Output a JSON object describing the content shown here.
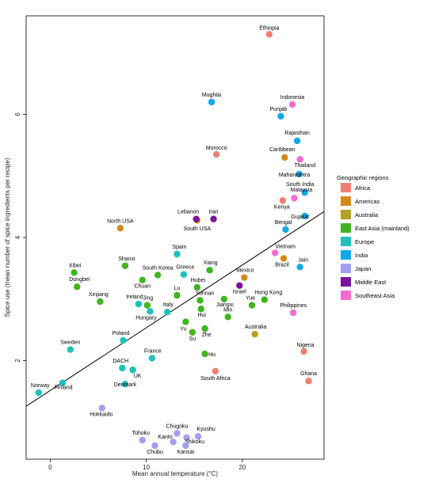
{
  "chart_data": {
    "type": "scatter",
    "xlabel": "Mean annual temperature (°C)",
    "ylabel": "Spice use (mean number of spice ingredients per recipe)",
    "xlim": [
      -2.5,
      28.5
    ],
    "ylim": [
      0.4,
      7.6
    ],
    "xticks": [
      0,
      10,
      20
    ],
    "yticks": [
      2,
      4,
      6
    ],
    "grid": false,
    "legend_position": "right",
    "legend_title": "Geographic regions",
    "trendline": {
      "x1": -2.5,
      "y1": 1.26,
      "x2": 28.5,
      "y2": 4.42
    },
    "groups": [
      {
        "name": "Africa",
        "color": "#f07f72"
      },
      {
        "name": "Americas",
        "color": "#d48a13"
      },
      {
        "name": "Australia",
        "color": "#b2a21c"
      },
      {
        "name": "East Asia (mainland)",
        "color": "#3fb51f"
      },
      {
        "name": "Europe",
        "color": "#1fc1b9"
      },
      {
        "name": "India",
        "color": "#12a9e8"
      },
      {
        "name": "Japan",
        "color": "#a29ef0"
      },
      {
        "name": "Middle East",
        "color": "#7b129b"
      },
      {
        "name": "Southeast Asia",
        "color": "#f66bd1"
      }
    ],
    "points": [
      {
        "label": "Ethiopia",
        "group": "Africa",
        "x": 22.8,
        "y": 7.3,
        "lx": 0,
        "ly": -6
      },
      {
        "label": "Morocco",
        "group": "Africa",
        "x": 17.3,
        "y": 5.35,
        "lx": 0,
        "ly": -6
      },
      {
        "label": "Kenya",
        "group": "Africa",
        "x": 24.2,
        "y": 4.6,
        "lx": -1,
        "ly": 10
      },
      {
        "label": "Nigeria",
        "group": "Africa",
        "x": 26.4,
        "y": 2.15,
        "lx": 2,
        "ly": -6
      },
      {
        "label": "Ghana",
        "group": "Africa",
        "x": 26.9,
        "y": 1.67,
        "lx": 0,
        "ly": -7
      },
      {
        "label": "South Africa",
        "group": "Africa",
        "x": 17.2,
        "y": 1.83,
        "lx": 0,
        "ly": 11
      },
      {
        "label": "North USA",
        "group": "Americas",
        "x": 7.3,
        "y": 4.15,
        "lx": 0,
        "ly": -7
      },
      {
        "label": "South USA",
        "group": "Americas",
        "x": 15.3,
        "y": 4.28,
        "lx": 0,
        "ly": 13
      },
      {
        "label": "Mexico",
        "group": "Americas",
        "x": 20.2,
        "y": 3.35,
        "lx": 1,
        "ly": -7
      },
      {
        "label": "Caribbean",
        "group": "Americas",
        "x": 24.4,
        "y": 5.3,
        "lx": -3,
        "ly": -8
      },
      {
        "label": "Brazil",
        "group": "Americas",
        "x": 24.3,
        "y": 3.66,
        "lx": -2,
        "ly": 10
      },
      {
        "label": "Australia",
        "group": "Australia",
        "x": 21.3,
        "y": 2.43,
        "lx": 1,
        "ly": -7
      },
      {
        "label": "Xibei",
        "group": "East Asia (mainland)",
        "x": 2.5,
        "y": 3.43,
        "lx": 1,
        "ly": -7
      },
      {
        "label": "Dongbei",
        "group": "East Asia (mainland)",
        "x": 2.8,
        "y": 3.2,
        "lx": 3,
        "ly": -7
      },
      {
        "label": "Shanxi",
        "group": "East Asia (mainland)",
        "x": 7.8,
        "y": 3.54,
        "lx": 2,
        "ly": -7
      },
      {
        "label": "Xinjiang",
        "group": "East Asia (mainland)",
        "x": 5.2,
        "y": 2.96,
        "lx": -2,
        "ly": -7
      },
      {
        "label": "South Korea",
        "group": "East Asia (mainland)",
        "x": 11.2,
        "y": 3.39,
        "lx": 0,
        "ly": -7
      },
      {
        "label": "Chuan",
        "group": "East Asia (mainland)",
        "x": 9.6,
        "y": 3.31,
        "lx": 0,
        "ly": 10
      },
      {
        "label": "Lu",
        "group": "East Asia (mainland)",
        "x": 13.2,
        "y": 3.06,
        "lx": 0,
        "ly": -7
      },
      {
        "label": "Jing",
        "group": "East Asia (mainland)",
        "x": 10.1,
        "y": 2.9,
        "lx": 1,
        "ly": -7
      },
      {
        "label": "Xiang",
        "group": "East Asia (mainland)",
        "x": 16.6,
        "y": 3.47,
        "lx": 1,
        "ly": -7
      },
      {
        "label": "Hubei",
        "group": "East Asia (mainland)",
        "x": 15.3,
        "y": 3.19,
        "lx": 1,
        "ly": -7
      },
      {
        "label": "Yunnan",
        "group": "East Asia (mainland)",
        "x": 15.6,
        "y": 2.98,
        "lx": 6,
        "ly": -7
      },
      {
        "label": "Jiangxi",
        "group": "East Asia (mainland)",
        "x": 18.1,
        "y": 3.0,
        "lx": 1,
        "ly": 9
      },
      {
        "label": "Yue",
        "group": "East Asia (mainland)",
        "x": 21.0,
        "y": 2.9,
        "lx": -2,
        "ly": -7
      },
      {
        "label": "Hong Kong",
        "group": "East Asia (mainland)",
        "x": 22.3,
        "y": 2.99,
        "lx": 5,
        "ly": -7
      },
      {
        "label": "Hui",
        "group": "East Asia (mainland)",
        "x": 15.7,
        "y": 2.84,
        "lx": 1,
        "ly": 10
      },
      {
        "label": "Min",
        "group": "East Asia (mainland)",
        "x": 18.5,
        "y": 2.71,
        "lx": 0,
        "ly": -7
      },
      {
        "label": "Yu",
        "group": "East Asia (mainland)",
        "x": 14.1,
        "y": 2.63,
        "lx": -3,
        "ly": 11
      },
      {
        "label": "Zhe",
        "group": "East Asia (mainland)",
        "x": 16.1,
        "y": 2.52,
        "lx": 2,
        "ly": 10
      },
      {
        "label": "Su",
        "group": "East Asia (mainland)",
        "x": 14.8,
        "y": 2.46,
        "lx": 0,
        "ly": 10
      },
      {
        "label": "Hu",
        "group": "East Asia (mainland)",
        "x": 16.1,
        "y": 2.11,
        "lx": 9,
        "ly": 3
      },
      {
        "label": "Spain",
        "group": "Europe",
        "x": 13.2,
        "y": 3.73,
        "lx": 3,
        "ly": -7
      },
      {
        "label": "Greece",
        "group": "Europe",
        "x": 13.9,
        "y": 3.4,
        "lx": 2,
        "ly": -7
      },
      {
        "label": "Ireland",
        "group": "Europe",
        "x": 9.2,
        "y": 2.92,
        "lx": -5,
        "ly": -7
      },
      {
        "label": "Hungary",
        "group": "Europe",
        "x": 10.4,
        "y": 2.8,
        "lx": -5,
        "ly": 10
      },
      {
        "label": "Italy",
        "group": "Europe",
        "x": 12.2,
        "y": 2.79,
        "lx": 1,
        "ly": -7
      },
      {
        "label": "Poland",
        "group": "Europe",
        "x": 7.6,
        "y": 2.33,
        "lx": -3,
        "ly": -7
      },
      {
        "label": "France",
        "group": "Europe",
        "x": 10.6,
        "y": 2.04,
        "lx": 1,
        "ly": -7
      },
      {
        "label": "Sweden",
        "group": "Europe",
        "x": 2.1,
        "y": 2.18,
        "lx": 0,
        "ly": -7
      },
      {
        "label": "DACH",
        "group": "Europe",
        "x": 7.5,
        "y": 1.88,
        "lx": -2,
        "ly": -7
      },
      {
        "label": "UK",
        "group": "Europe",
        "x": 8.6,
        "y": 1.85,
        "lx": 6,
        "ly": 10
      },
      {
        "label": "Denmark",
        "group": "Europe",
        "x": 7.8,
        "y": 1.62,
        "lx": 0,
        "ly": 3
      },
      {
        "label": "Finland",
        "group": "Europe",
        "x": 1.3,
        "y": 1.64,
        "lx": 1,
        "ly": 8
      },
      {
        "label": "Norway",
        "group": "Europe",
        "x": -1.2,
        "y": 1.48,
        "lx": 2,
        "ly": -7
      },
      {
        "label": "Mughlai",
        "group": "India",
        "x": 16.8,
        "y": 6.2,
        "lx": 0,
        "ly": -7
      },
      {
        "label": "Punjab",
        "group": "India",
        "x": 24.0,
        "y": 5.97,
        "lx": -3,
        "ly": -7
      },
      {
        "label": "Rajasthan",
        "group": "India",
        "x": 25.7,
        "y": 5.57,
        "lx": 0,
        "ly": -8
      },
      {
        "label": "Maharashtra",
        "group": "India",
        "x": 25.9,
        "y": 5.03,
        "lx": -6,
        "ly": 3
      },
      {
        "label": "South India",
        "group": "India",
        "x": 26.5,
        "y": 4.73,
        "lx": -6,
        "ly": -8
      },
      {
        "label": "Gujarat",
        "group": "India",
        "x": 26.5,
        "y": 4.35,
        "lx": -6,
        "ly": 3
      },
      {
        "label": "Bengal",
        "group": "India",
        "x": 24.5,
        "y": 4.13,
        "lx": -3,
        "ly": -7
      },
      {
        "label": "Jain",
        "group": "India",
        "x": 26.0,
        "y": 3.52,
        "lx": 4,
        "ly": -7
      },
      {
        "label": "Hokkaido",
        "group": "Japan",
        "x": 5.4,
        "y": 1.23,
        "lx": -1,
        "ly": 10
      },
      {
        "label": "Chugoku",
        "group": "Japan",
        "x": 13.2,
        "y": 0.82,
        "lx": 0,
        "ly": -7
      },
      {
        "label": "Kyushu",
        "group": "Japan",
        "x": 15.4,
        "y": 0.77,
        "lx": 10,
        "ly": -7
      },
      {
        "label": "Tohoku",
        "group": "Japan",
        "x": 9.6,
        "y": 0.71,
        "lx": -2,
        "ly": -7
      },
      {
        "label": "Kanto",
        "group": "Japan",
        "x": 12.8,
        "y": 0.68,
        "lx": -10,
        "ly": -4
      },
      {
        "label": "Shikoku",
        "group": "Japan",
        "x": 14.2,
        "y": 0.75,
        "lx": 10,
        "ly": 7
      },
      {
        "label": "Chubu",
        "group": "Japan",
        "x": 10.9,
        "y": 0.62,
        "lx": 0,
        "ly": 10
      },
      {
        "label": "Kansai",
        "group": "Japan",
        "x": 14.1,
        "y": 0.62,
        "lx": 0,
        "ly": 10
      },
      {
        "label": "Lebanon",
        "group": "Middle East",
        "x": 15.2,
        "y": 4.3,
        "lx": -10,
        "ly": -7
      },
      {
        "label": "Iran",
        "group": "Middle East",
        "x": 17.0,
        "y": 4.3,
        "lx": 0,
        "ly": -7
      },
      {
        "label": "Israel",
        "group": "Middle East",
        "x": 19.7,
        "y": 3.22,
        "lx": 0,
        "ly": 10
      },
      {
        "label": "Indonesia",
        "group": "Southeast Asia",
        "x": 25.2,
        "y": 6.16,
        "lx": 0,
        "ly": -7
      },
      {
        "label": "Thailand",
        "group": "Southeast Asia",
        "x": 26.0,
        "y": 5.27,
        "lx": 6,
        "ly": 10
      },
      {
        "label": "Malaysia",
        "group": "Southeast Asia",
        "x": 25.4,
        "y": 4.64,
        "lx": 9,
        "ly": -8
      },
      {
        "label": "Vietnam",
        "group": "Southeast Asia",
        "x": 23.4,
        "y": 3.75,
        "lx": 13,
        "ly": -6
      },
      {
        "label": "Philippines",
        "group": "Southeast Asia",
        "x": 25.3,
        "y": 2.78,
        "lx": 0,
        "ly": -7
      }
    ]
  }
}
